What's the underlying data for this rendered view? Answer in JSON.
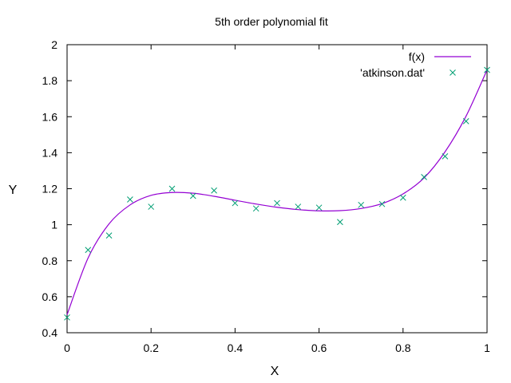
{
  "chart_data": {
    "type": "scatter",
    "title": "5th order polynomial fit",
    "xlabel": "X",
    "ylabel": "Y",
    "xlim": [
      0,
      1
    ],
    "ylim": [
      0.4,
      2
    ],
    "xticks": [
      0,
      0.2,
      0.4,
      0.6,
      0.8,
      1
    ],
    "xtick_labels": [
      "0",
      "0.2",
      "0.4",
      "0.6",
      "0.8",
      "1"
    ],
    "yticks": [
      0.4,
      0.6,
      0.8,
      1,
      1.2,
      1.4,
      1.6,
      1.8,
      2
    ],
    "ytick_labels": [
      "0.4",
      "0.6",
      "0.8",
      "1",
      "1.2",
      "1.4",
      "1.6",
      "1.8",
      "2"
    ],
    "grid": false,
    "legend_position": "top-right",
    "series": [
      {
        "name": "f(x)",
        "kind": "line",
        "color": "#9400d3",
        "x": [
          0,
          0.05,
          0.1,
          0.15,
          0.2,
          0.25,
          0.3,
          0.35,
          0.4,
          0.45,
          0.5,
          0.55,
          0.6,
          0.65,
          0.7,
          0.75,
          0.8,
          0.85,
          0.9,
          0.95,
          1
        ],
        "y": [
          0.5,
          0.815,
          1.005,
          1.11,
          1.163,
          1.179,
          1.175,
          1.158,
          1.136,
          1.115,
          1.097,
          1.084,
          1.077,
          1.078,
          1.09,
          1.117,
          1.171,
          1.26,
          1.405,
          1.603,
          1.86
        ]
      },
      {
        "name": "'atkinson.dat'",
        "kind": "points",
        "marker": "x",
        "color": "#009e73",
        "x": [
          0,
          0.05,
          0.1,
          0.15,
          0.2,
          0.25,
          0.3,
          0.35,
          0.4,
          0.45,
          0.5,
          0.55,
          0.6,
          0.65,
          0.7,
          0.75,
          0.8,
          0.85,
          0.9,
          0.95,
          1
        ],
        "y": [
          0.485,
          0.86,
          0.94,
          1.14,
          1.1,
          1.2,
          1.16,
          1.19,
          1.12,
          1.09,
          1.12,
          1.1,
          1.095,
          1.015,
          1.11,
          1.115,
          1.15,
          1.265,
          1.38,
          1.575,
          1.86
        ]
      }
    ]
  }
}
